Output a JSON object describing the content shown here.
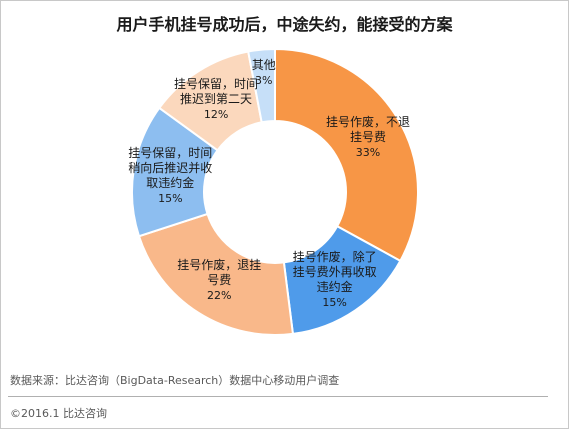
{
  "chart_data": {
    "type": "pie",
    "title": "用户手机挂号成功后，中途失约，能接受的方案",
    "categories": [
      "挂号作废，不退挂号费",
      "挂号作废，除了挂号费外再收取违约金",
      "挂号作废，退挂号费",
      "挂号保留，时间稍向后推迟并收取违约金",
      "挂号保留，时间推迟到第二天",
      "其他"
    ],
    "values": [
      33,
      15,
      22,
      15,
      12,
      3
    ],
    "unit": "%",
    "slices": [
      {
        "lines": [
          "挂号作废，不退",
          "挂号费"
        ],
        "pct": "33%",
        "color": "#F79646"
      },
      {
        "lines": [
          "挂号作废，除了",
          "挂号费外再收取",
          "违约金"
        ],
        "pct": "15%",
        "color": "#4F9BEA"
      },
      {
        "lines": [
          "挂号作废，退挂",
          "号费"
        ],
        "pct": "22%",
        "color": "#F9B88A"
      },
      {
        "lines": [
          "挂号保留，时间",
          "稍向后推迟并收",
          "取违约金"
        ],
        "pct": "15%",
        "color": "#8DBEF0"
      },
      {
        "lines": [
          "挂号保留，时间",
          "推迟到第二天"
        ],
        "pct": "12%",
        "color": "#FBD8BD"
      },
      {
        "lines": [
          "其他"
        ],
        "pct": "3%",
        "color": "#C6DFF8"
      }
    ],
    "legend": "none",
    "donut": true
  },
  "footer": {
    "source": "数据来源：比达咨询（BigData-Research）数据中心移动用户调查",
    "copyright": "©2016.1  比达咨询"
  }
}
